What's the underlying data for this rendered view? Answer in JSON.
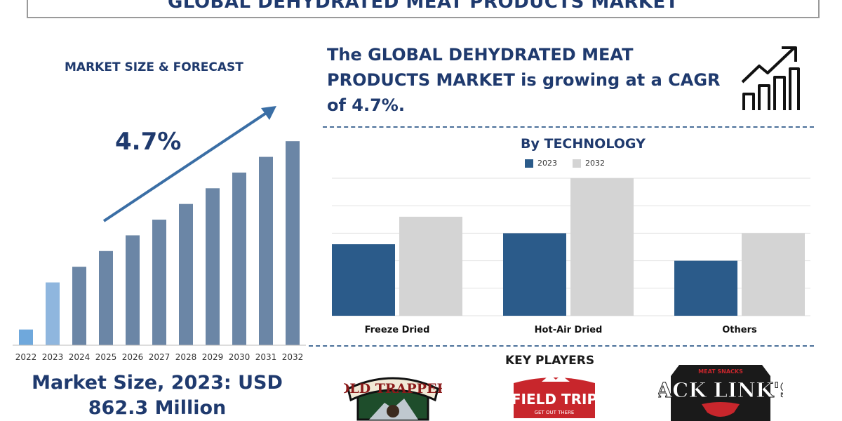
{
  "title": "GLOBAL DEHYDRATED MEAT PRODUCTS MARKET",
  "market_size_heading": "MARKET SIZE & FORECAST",
  "cagr_value": "4.7%",
  "market_size_text": [
    "Market Size, 2023: USD",
    "862.3 Million"
  ],
  "cagr_statement": [
    "The GLOBAL DEHYDRATED MEAT",
    "PRODUCTS MARKET is growing at a CAGR",
    "of 4.7%."
  ],
  "technology_heading": "By TECHNOLOGY",
  "key_players_heading": "KEY PLAYERS",
  "key_players": {
    "old_trapper": {
      "name": "OLD TRAPPER"
    },
    "field_trip": {
      "name": "FIELD TRIP",
      "tagline": "GET OUT THERE"
    },
    "jack_links": {
      "name": "JACK LINK'S",
      "tagline": "MEAT SNACKS"
    }
  },
  "colors": {
    "title": "#1f3a6e",
    "bar_dark": "#2b5b8a",
    "bar_light": "#d4d4d4",
    "market_bar": "#6b86a6",
    "market_bar_2022": "#6fa8dc",
    "market_bar_2023": "#8fb6de",
    "arrow": "#3a6ea5"
  },
  "chart_data": [
    {
      "type": "bar",
      "title": "MARKET SIZE & FORECAST",
      "categories": [
        "2022",
        "2023",
        "2024",
        "2025",
        "2026",
        "2027",
        "2028",
        "2029",
        "2030",
        "2031",
        "2032"
      ],
      "values": [
        1.0,
        4.0,
        5.0,
        6.0,
        7.0,
        8.0,
        9.0,
        10.0,
        11.0,
        12.0,
        13.0
      ],
      "ylim": [
        0,
        13.5
      ],
      "annotation": "4.7%"
    },
    {
      "type": "bar",
      "title": "By TECHNOLOGY",
      "categories": [
        "Freeze Dried",
        "Hot-Air Dried",
        "Others"
      ],
      "series": [
        {
          "name": "2023",
          "values": [
            2.6,
            3.0,
            2.0
          ]
        },
        {
          "name": "2032",
          "values": [
            3.6,
            5.0,
            3.0
          ]
        }
      ],
      "ylim": [
        0,
        5
      ],
      "grid": true,
      "legend": "top"
    }
  ]
}
